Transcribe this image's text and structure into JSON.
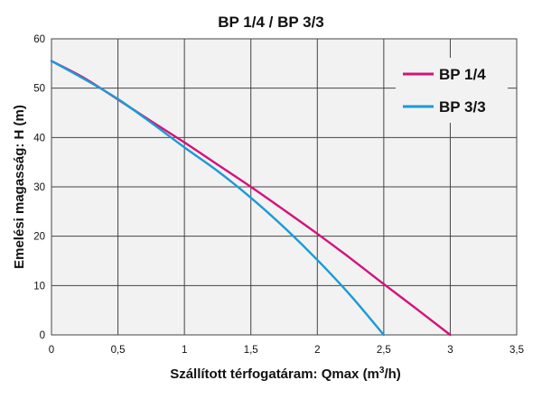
{
  "chart_data": {
    "type": "line",
    "title": "BP 1/4  /  BP 3/3",
    "xlabel_prefix": "Szállított térfogatáram: Qmax (m",
    "xlabel_sup": "3",
    "xlabel_suffix": "/h)",
    "ylabel": "Emelési magasság: H (m)",
    "xlim": [
      0,
      3.5
    ],
    "ylim": [
      0,
      60
    ],
    "xticks": [
      0,
      0.5,
      1,
      1.5,
      2,
      2.5,
      3,
      3.5
    ],
    "xtick_labels": [
      "0",
      "0,5",
      "1",
      "1,5",
      "2",
      "2,5",
      "3",
      "3,5"
    ],
    "yticks": [
      0,
      10,
      20,
      30,
      40,
      50,
      60
    ],
    "ytick_labels": [
      "0",
      "10",
      "20",
      "30",
      "40",
      "50",
      "60"
    ],
    "grid": true,
    "legend_position": "top-right",
    "series": [
      {
        "name": "BP 1/4",
        "color": "#d4127a",
        "x": [
          0,
          0.25,
          0.5,
          0.75,
          1,
          1.25,
          1.5,
          1.75,
          2,
          2.25,
          2.5,
          2.75,
          3
        ],
        "y": [
          55.5,
          52,
          47.7,
          43.3,
          39,
          34.5,
          30,
          25.3,
          20.5,
          15.5,
          10.3,
          5.2,
          0
        ]
      },
      {
        "name": "BP 3/3",
        "color": "#1b9ad6",
        "x": [
          0,
          0.25,
          0.5,
          0.75,
          1,
          1.25,
          1.5,
          1.75,
          2,
          2.25,
          2.5
        ],
        "y": [
          55.5,
          51.8,
          47.8,
          43,
          38,
          33.2,
          27.8,
          21.8,
          15.2,
          8,
          0
        ]
      }
    ]
  }
}
